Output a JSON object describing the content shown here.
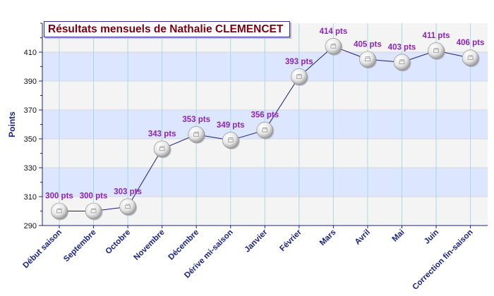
{
  "chart_data": {
    "type": "line",
    "title": "Résultats mensuels de Nathalie CLEMENCET",
    "ylabel": "Points",
    "xlabel": "",
    "categories": [
      "Début saison",
      "Septembre",
      "Octobre",
      "Novembre",
      "Décembre",
      "Dérive mi-saison",
      "Janvier",
      "Février",
      "Mars",
      "Avril",
      "Mai",
      "Juin",
      "Correction fin-saison"
    ],
    "values": [
      300,
      300,
      303,
      343,
      353,
      349,
      356,
      393,
      414,
      405,
      403,
      411,
      406
    ],
    "data_labels": [
      "300 pts",
      "300 pts",
      "303 pts",
      "343 pts",
      "353 pts",
      "349 pts",
      "356 pts",
      "393 pts",
      "414 pts",
      "405 pts",
      "403 pts",
      "411 pts",
      "406 pts"
    ],
    "ylim": [
      290,
      430
    ],
    "yticks": [
      290,
      310,
      330,
      350,
      370,
      390,
      410
    ],
    "grid": true,
    "colors": {
      "band_blue": "#dde6ff",
      "band_grey": "#f4f4f4",
      "line": "#1a1a7a",
      "axis": "#1a2380",
      "data_label": "#8c24b8",
      "title_text": "#7a0010",
      "vertical_grid": "#a8d8e8"
    }
  }
}
